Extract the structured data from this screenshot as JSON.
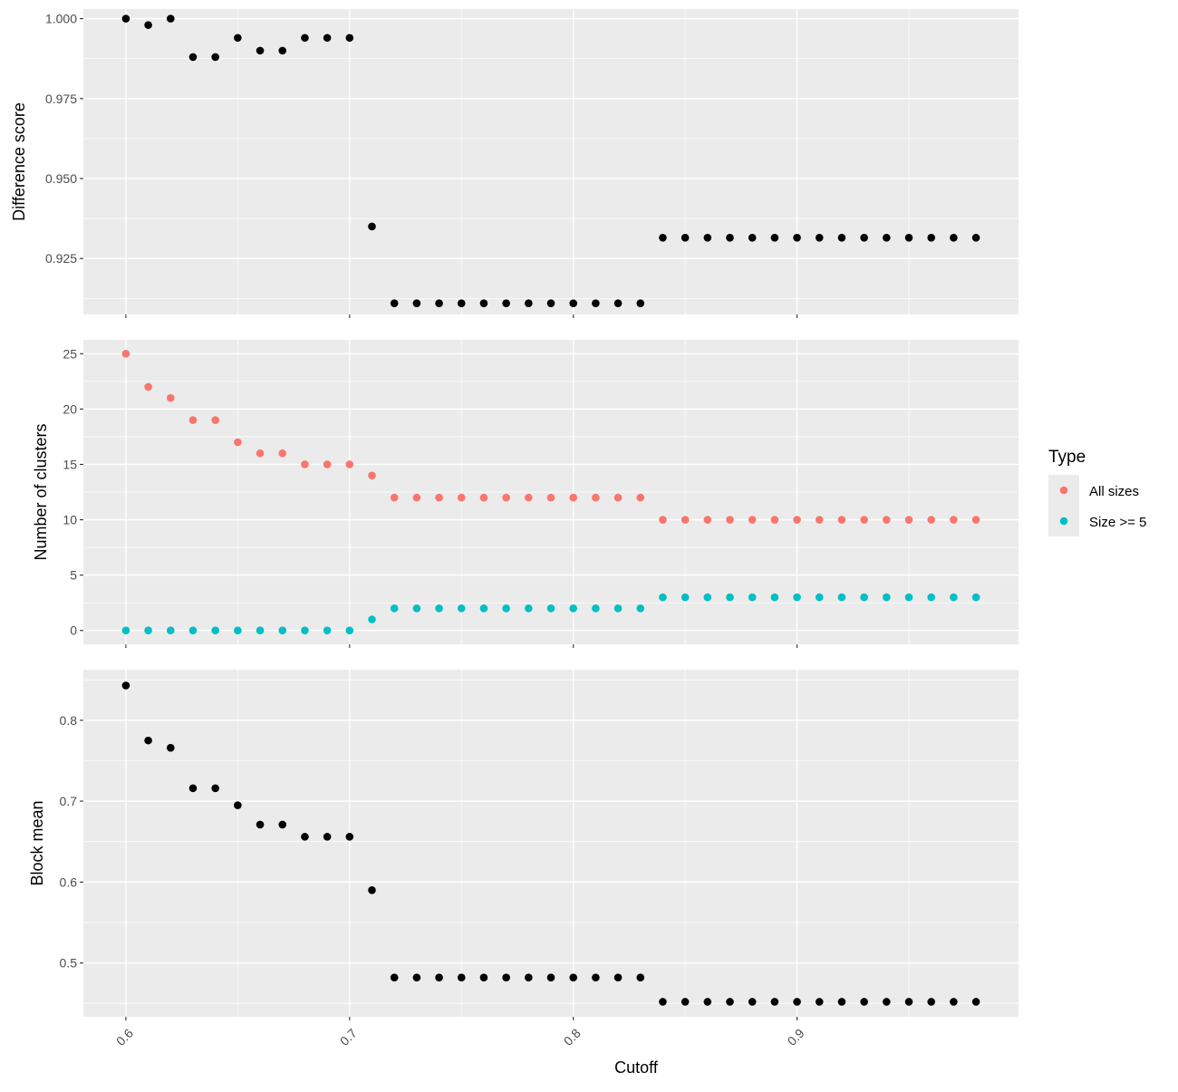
{
  "chart_data": [
    {
      "type": "scatter",
      "ylabel": "Difference score",
      "xlim": [
        0.581,
        0.999
      ],
      "ylim": [
        0.9075,
        1.003
      ],
      "yticks": [
        "0.925",
        "0.950",
        "0.975",
        "1.000"
      ],
      "ytick_values": [
        0.925,
        0.95,
        0.975,
        1.0
      ],
      "show_x_tick_labels": false,
      "series": [
        {
          "color": "#000000",
          "points": [
            [
              0.6,
              1.0
            ],
            [
              0.61,
              0.998
            ],
            [
              0.62,
              1.0
            ],
            [
              0.63,
              0.988
            ],
            [
              0.64,
              0.988
            ],
            [
              0.65,
              0.994
            ],
            [
              0.66,
              0.99
            ],
            [
              0.67,
              0.99
            ],
            [
              0.68,
              0.994
            ],
            [
              0.69,
              0.994
            ],
            [
              0.7,
              0.994
            ],
            [
              0.71,
              0.935
            ],
            [
              0.72,
              0.911
            ],
            [
              0.73,
              0.911
            ],
            [
              0.74,
              0.911
            ],
            [
              0.75,
              0.911
            ],
            [
              0.76,
              0.911
            ],
            [
              0.77,
              0.911
            ],
            [
              0.78,
              0.911
            ],
            [
              0.79,
              0.911
            ],
            [
              0.8,
              0.911
            ],
            [
              0.81,
              0.911
            ],
            [
              0.82,
              0.911
            ],
            [
              0.83,
              0.911
            ],
            [
              0.84,
              0.9315
            ],
            [
              0.85,
              0.9315
            ],
            [
              0.86,
              0.9315
            ],
            [
              0.87,
              0.9315
            ],
            [
              0.88,
              0.9315
            ],
            [
              0.89,
              0.9315
            ],
            [
              0.9,
              0.9315
            ],
            [
              0.91,
              0.9315
            ],
            [
              0.92,
              0.9315
            ],
            [
              0.93,
              0.9315
            ],
            [
              0.94,
              0.9315
            ],
            [
              0.95,
              0.9315
            ],
            [
              0.96,
              0.9315
            ],
            [
              0.97,
              0.9315
            ],
            [
              0.98,
              0.9315
            ]
          ]
        }
      ]
    },
    {
      "type": "scatter",
      "ylabel": "Number of clusters",
      "xlim": [
        0.581,
        0.999
      ],
      "ylim": [
        -1.25,
        26.25
      ],
      "yticks": [
        "0",
        "5",
        "10",
        "15",
        "20",
        "25"
      ],
      "ytick_values": [
        0,
        5,
        10,
        15,
        20,
        25
      ],
      "show_x_tick_labels": false,
      "series": [
        {
          "name": "All sizes",
          "color": "#F8766D",
          "points": [
            [
              0.6,
              25
            ],
            [
              0.61,
              22
            ],
            [
              0.62,
              21
            ],
            [
              0.63,
              19
            ],
            [
              0.64,
              19
            ],
            [
              0.65,
              17
            ],
            [
              0.66,
              16
            ],
            [
              0.67,
              16
            ],
            [
              0.68,
              15
            ],
            [
              0.69,
              15
            ],
            [
              0.7,
              15
            ],
            [
              0.71,
              14
            ],
            [
              0.72,
              12
            ],
            [
              0.73,
              12
            ],
            [
              0.74,
              12
            ],
            [
              0.75,
              12
            ],
            [
              0.76,
              12
            ],
            [
              0.77,
              12
            ],
            [
              0.78,
              12
            ],
            [
              0.79,
              12
            ],
            [
              0.8,
              12
            ],
            [
              0.81,
              12
            ],
            [
              0.82,
              12
            ],
            [
              0.83,
              12
            ],
            [
              0.84,
              10
            ],
            [
              0.85,
              10
            ],
            [
              0.86,
              10
            ],
            [
              0.87,
              10
            ],
            [
              0.88,
              10
            ],
            [
              0.89,
              10
            ],
            [
              0.9,
              10
            ],
            [
              0.91,
              10
            ],
            [
              0.92,
              10
            ],
            [
              0.93,
              10
            ],
            [
              0.94,
              10
            ],
            [
              0.95,
              10
            ],
            [
              0.96,
              10
            ],
            [
              0.97,
              10
            ],
            [
              0.98,
              10
            ]
          ]
        },
        {
          "name": "Size >= 5",
          "color": "#00BFC4",
          "points": [
            [
              0.6,
              0
            ],
            [
              0.61,
              0
            ],
            [
              0.62,
              0
            ],
            [
              0.63,
              0
            ],
            [
              0.64,
              0
            ],
            [
              0.65,
              0
            ],
            [
              0.66,
              0
            ],
            [
              0.67,
              0
            ],
            [
              0.68,
              0
            ],
            [
              0.69,
              0
            ],
            [
              0.7,
              0
            ],
            [
              0.71,
              1
            ],
            [
              0.72,
              2
            ],
            [
              0.73,
              2
            ],
            [
              0.74,
              2
            ],
            [
              0.75,
              2
            ],
            [
              0.76,
              2
            ],
            [
              0.77,
              2
            ],
            [
              0.78,
              2
            ],
            [
              0.79,
              2
            ],
            [
              0.8,
              2
            ],
            [
              0.81,
              2
            ],
            [
              0.82,
              2
            ],
            [
              0.83,
              2
            ],
            [
              0.84,
              3
            ],
            [
              0.85,
              3
            ],
            [
              0.86,
              3
            ],
            [
              0.87,
              3
            ],
            [
              0.88,
              3
            ],
            [
              0.89,
              3
            ],
            [
              0.9,
              3
            ],
            [
              0.91,
              3
            ],
            [
              0.92,
              3
            ],
            [
              0.93,
              3
            ],
            [
              0.94,
              3
            ],
            [
              0.95,
              3
            ],
            [
              0.96,
              3
            ],
            [
              0.97,
              3
            ],
            [
              0.98,
              3
            ]
          ]
        }
      ]
    },
    {
      "type": "scatter",
      "ylabel": "Block mean",
      "xlabel": "Cutoff",
      "xlim": [
        0.581,
        0.999
      ],
      "ylim": [
        0.4335,
        0.8625
      ],
      "yticks": [
        "0.5",
        "0.6",
        "0.7",
        "0.8"
      ],
      "ytick_values": [
        0.5,
        0.6,
        0.7,
        0.8
      ],
      "xticks": [
        "0.6",
        "0.7",
        "0.8",
        "0.9"
      ],
      "xtick_values": [
        0.6,
        0.7,
        0.8,
        0.9
      ],
      "show_x_tick_labels": true,
      "series": [
        {
          "color": "#000000",
          "points": [
            [
              0.6,
              0.843
            ],
            [
              0.61,
              0.775
            ],
            [
              0.62,
              0.766
            ],
            [
              0.63,
              0.716
            ],
            [
              0.64,
              0.716
            ],
            [
              0.65,
              0.695
            ],
            [
              0.66,
              0.671
            ],
            [
              0.67,
              0.671
            ],
            [
              0.68,
              0.656
            ],
            [
              0.69,
              0.656
            ],
            [
              0.7,
              0.656
            ],
            [
              0.71,
              0.59
            ],
            [
              0.72,
              0.482
            ],
            [
              0.73,
              0.482
            ],
            [
              0.74,
              0.482
            ],
            [
              0.75,
              0.482
            ],
            [
              0.76,
              0.482
            ],
            [
              0.77,
              0.482
            ],
            [
              0.78,
              0.482
            ],
            [
              0.79,
              0.482
            ],
            [
              0.8,
              0.482
            ],
            [
              0.81,
              0.482
            ],
            [
              0.82,
              0.482
            ],
            [
              0.83,
              0.482
            ],
            [
              0.84,
              0.452
            ],
            [
              0.85,
              0.452
            ],
            [
              0.86,
              0.452
            ],
            [
              0.87,
              0.452
            ],
            [
              0.88,
              0.452
            ],
            [
              0.89,
              0.452
            ],
            [
              0.9,
              0.452
            ],
            [
              0.91,
              0.452
            ],
            [
              0.92,
              0.452
            ],
            [
              0.93,
              0.452
            ],
            [
              0.94,
              0.452
            ],
            [
              0.95,
              0.452
            ],
            [
              0.96,
              0.452
            ],
            [
              0.97,
              0.452
            ],
            [
              0.98,
              0.452
            ]
          ]
        }
      ]
    }
  ],
  "legend": {
    "title": "Type",
    "placement": "right",
    "items": [
      {
        "label": "All sizes",
        "color": "#F8766D"
      },
      {
        "label": "Size >= 5",
        "color": "#00BFC4"
      }
    ]
  },
  "colors": {
    "panel_background": "#EBEBEB",
    "grid_major": "#FFFFFF",
    "tick": "#333333"
  }
}
